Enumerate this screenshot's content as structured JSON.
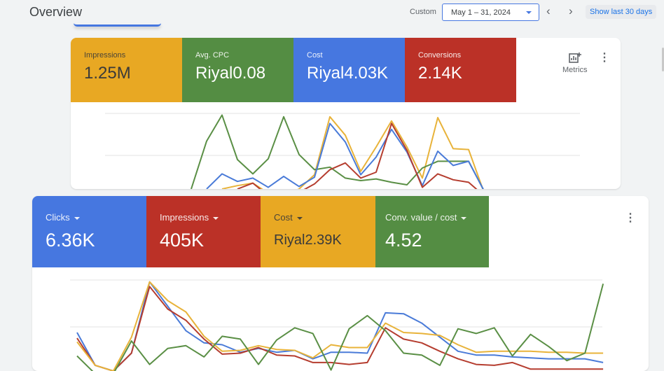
{
  "header": {
    "title": "Overview",
    "range_label": "Custom",
    "date_range": "May 1 – 31, 2024",
    "prev": "‹",
    "next": "›",
    "show_last": "Show last 30 days"
  },
  "card1": {
    "tiles": [
      {
        "label": "Impressions",
        "value": "1.25M",
        "color": "#e8a823"
      },
      {
        "label": "Avg. CPC",
        "value": "Riyal0.08",
        "color": "#548d43"
      },
      {
        "label": "Cost",
        "value": "Riyal4.03K",
        "color": "#4677e0"
      },
      {
        "label": "Conversions",
        "value": "2.14K",
        "color": "#bb3127"
      }
    ],
    "metrics_label": "Metrics",
    "more": "⋮"
  },
  "card2": {
    "tiles": [
      {
        "label": "Clicks",
        "value": "6.36K",
        "color": "#4677e0"
      },
      {
        "label": "Impressions",
        "value": "405K",
        "color": "#bb3127"
      },
      {
        "label": "Cost",
        "value": "Riyal2.39K",
        "color": "#e8a823"
      },
      {
        "label": "Conv. value / cost",
        "value": "4.52",
        "color": "#548d43"
      }
    ],
    "more": "⋮"
  },
  "chart_data": [
    {
      "type": "line",
      "title": "",
      "ylim": [
        0,
        100
      ],
      "gridlines": [
        50,
        100
      ],
      "series": [
        {
          "name": "Impressions",
          "color": "#e8b33a",
          "values": [
            null,
            null,
            10,
            14,
            17,
            5,
            2,
            10,
            27,
            96,
            74,
            31,
            60,
            91,
            60,
            23,
            95,
            58,
            57,
            6
          ]
        },
        {
          "name": "Avg. CPC",
          "color": "#5a8f45",
          "values": [
            10,
            67,
            98,
            45,
            28,
            46,
            96,
            51,
            33,
            36,
            23,
            20,
            22,
            18,
            15,
            35,
            43,
            43,
            43,
            8
          ]
        },
        {
          "name": "Cost",
          "color": "#4a7bd8",
          "values": [
            null,
            10,
            28,
            19,
            23,
            12,
            25,
            13,
            24,
            88,
            66,
            27,
            48,
            81,
            54,
            14,
            55,
            38,
            43,
            8
          ]
        },
        {
          "name": "Conversions",
          "color": "#b53d2f",
          "values": [
            null,
            null,
            null,
            10,
            17,
            2,
            null,
            6,
            16,
            33,
            41,
            23,
            30,
            88,
            56,
            12,
            28,
            21,
            18,
            2
          ]
        }
      ]
    },
    {
      "type": "line",
      "title": "",
      "ylim": [
        0,
        100
      ],
      "gridlines": [
        50,
        100
      ],
      "series": [
        {
          "name": "Clicks",
          "color": "#4a7bd8",
          "values": [
            44,
            9,
            3,
            22,
            98,
            72,
            46,
            33,
            31,
            23,
            27,
            23,
            25,
            16,
            23,
            23,
            22,
            65,
            64,
            54,
            39,
            24,
            20,
            20,
            18,
            17,
            16,
            16,
            16,
            12
          ]
        },
        {
          "name": "Impressions",
          "color": "#b53d2f",
          "values": [
            38,
            9,
            3,
            22,
            93,
            69,
            57,
            37,
            21,
            22,
            28,
            20,
            19,
            12,
            12,
            10,
            12,
            49,
            37,
            33,
            24,
            16,
            10,
            9,
            12,
            5,
            5,
            5,
            5,
            5
          ]
        },
        {
          "name": "Cost",
          "color": "#e8b33a",
          "values": [
            34,
            9,
            3,
            39,
            98,
            78,
            66,
            40,
            24,
            25,
            30,
            26,
            25,
            17,
            31,
            28,
            28,
            54,
            44,
            43,
            41,
            31,
            23,
            24,
            24,
            24,
            23,
            23,
            22,
            22
          ]
        },
        {
          "name": "Conv. value / cost",
          "color": "#5a8f45",
          "values": [
            19,
            0,
            0,
            35,
            10,
            27,
            30,
            18,
            40,
            37,
            10,
            36,
            49,
            43,
            4,
            48,
            62,
            46,
            22,
            20,
            9,
            48,
            43,
            49,
            19,
            42,
            29,
            14,
            22,
            96
          ]
        }
      ]
    }
  ]
}
